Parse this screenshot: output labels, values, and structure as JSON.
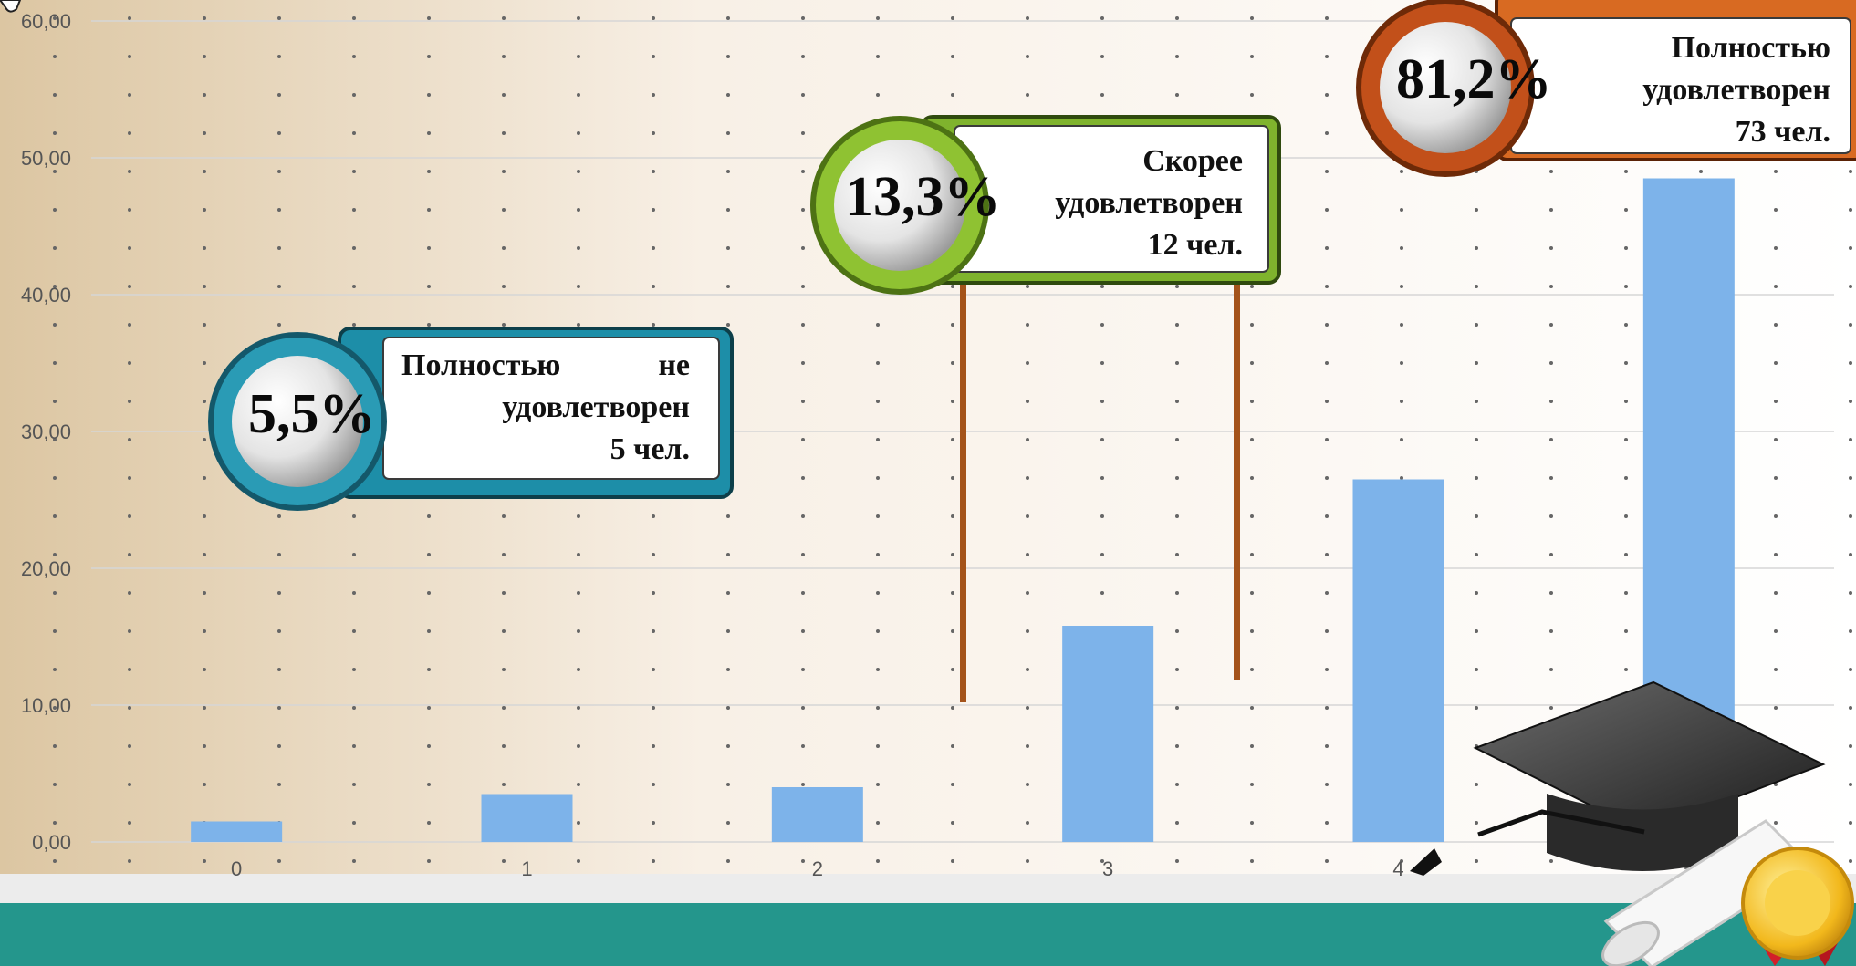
{
  "chart_data": {
    "type": "bar",
    "categories": [
      "0",
      "1",
      "2",
      "3",
      "4",
      "5"
    ],
    "values": [
      1.5,
      3.5,
      4.0,
      15.8,
      26.5,
      48.5
    ],
    "ylim": [
      0,
      60
    ],
    "yticks": [
      "0,00",
      "10,00",
      "20,00",
      "30,00",
      "40,00",
      "50,00",
      "60,00"
    ],
    "bar_color": "#7db3ea",
    "grid": true
  },
  "callouts": [
    {
      "id": "c1",
      "percent": "5,5%",
      "line1": "Полностью не",
      "line2": "удовлетворен",
      "line3": "5 чел.",
      "color": "#2a9bb5"
    },
    {
      "id": "c2",
      "percent": "13,3%",
      "line1": "Скорее",
      "line2": "удовлетворен",
      "line3": "12 чел.",
      "color": "#7fb32d"
    },
    {
      "id": "c3",
      "percent": "81,2%",
      "line1": "Полностью",
      "line2": "удовлетворен",
      "line3": "73 чел.",
      "color": "#c2501a"
    }
  ],
  "colors": {
    "footer_band": "#24968c",
    "background_left": "#dcc6a2",
    "background_right": "#ffffff",
    "pole": "#a4531a"
  },
  "decorations": {
    "cap": "graduation-cap-icon",
    "scroll": "diploma-scroll-icon",
    "medal": "award-medal-icon"
  }
}
